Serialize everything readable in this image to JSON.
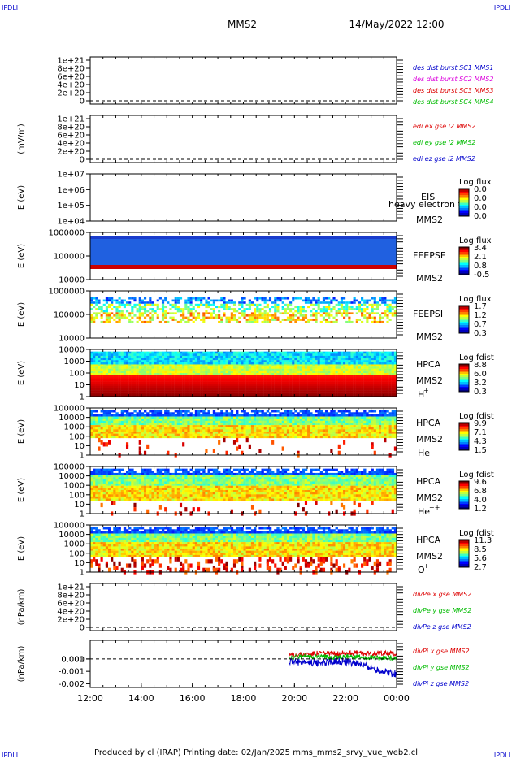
{
  "header": {
    "corner_label": "IPDLI",
    "spacecraft": "MMS2",
    "datetime": "14/May/2022 12:00"
  },
  "footer": {
    "text": "Produced by cl (IRAP)   Printing date: 02/Jan/2025   mms_mms2_srvy_vue_web2.cl"
  },
  "x_axis": {
    "range_hours": [
      12,
      24
    ],
    "ticks": [
      "12:00",
      "14:00",
      "16:00",
      "18:00",
      "20:00",
      "22:00",
      "00:00"
    ]
  },
  "colors": {
    "red": "#dd0000",
    "green": "#00bb00",
    "blue": "#0000cc",
    "magenta": "#dd00dd"
  },
  "chart_data": [
    {
      "type": "line",
      "ylabel": "",
      "yticks": [
        "1e+21",
        "8e+20",
        "6e+20",
        "4e+20",
        "2e+20",
        "0"
      ],
      "ylim": [
        0,
        1e+21
      ],
      "legend": [
        {
          "text": "des dist burst SC1 MMS1",
          "color": "#0000cc"
        },
        {
          "text": "des dist burst SC2 MMS2",
          "color": "#dd00dd"
        },
        {
          "text": "des dist burst SC3 MMS3",
          "color": "#dd0000"
        },
        {
          "text": "des dist burst SC4 MMS4",
          "color": "#00bb00"
        }
      ],
      "series": []
    },
    {
      "type": "line",
      "ylabel": "(mV/m)",
      "yticks": [
        "1e+21",
        "8e+20",
        "6e+20",
        "4e+20",
        "2e+20",
        "0"
      ],
      "ylim": [
        0,
        1e+21
      ],
      "legend": [
        {
          "text": "edi ex gse l2 MMS2",
          "color": "#dd0000"
        },
        {
          "text": "edi ey gse l2 MMS2",
          "color": "#00bb00"
        },
        {
          "text": "edi ez gse l2 MMS2",
          "color": "#0000cc"
        }
      ],
      "series": []
    },
    {
      "type": "heatmap",
      "ylabel": "E (eV)",
      "yticks": [
        "1e+07",
        "1e+06",
        "1e+05",
        "1e+04"
      ],
      "yscale": "log",
      "instrument": "EIS",
      "overlay_text": "heavy electron to",
      "spacecraft": "MMS2",
      "colorbar_title": "Log flux",
      "colorbar_ticks": [
        "0.0",
        "0.0",
        "0.0",
        "0.0"
      ]
    },
    {
      "type": "heatmap",
      "ylabel": "E (eV)",
      "yticks": [
        "1000000",
        "100000",
        "10000"
      ],
      "yscale": "log",
      "instrument": "FEEPSE",
      "spacecraft": "MMS2",
      "colorbar_title": "Log flux",
      "colorbar_ticks": [
        "3.4",
        "2.1",
        "0.8",
        "-0.5"
      ]
    },
    {
      "type": "heatmap",
      "ylabel": "E (eV)",
      "yticks": [
        "1000000",
        "100000",
        "10000"
      ],
      "yscale": "log",
      "instrument": "FEEPSI",
      "spacecraft": "MMS2",
      "colorbar_title": "Log flux",
      "colorbar_ticks": [
        "1.7",
        "1.2",
        "0.7",
        "0.3"
      ]
    },
    {
      "type": "heatmap",
      "ylabel": "E (eV)",
      "yticks": [
        "10000",
        "1000",
        "100",
        "10",
        "1"
      ],
      "yscale": "log",
      "instrument": "HPCA",
      "spacecraft": "MMS2",
      "species": "H",
      "charge": "+",
      "colorbar_title": "Log fdist",
      "colorbar_ticks": [
        "8.8",
        "6.0",
        "3.2",
        "0.3"
      ]
    },
    {
      "type": "heatmap",
      "ylabel": "E (eV)",
      "yticks": [
        "100000",
        "10000",
        "1000",
        "100",
        "10",
        "1"
      ],
      "yscale": "log",
      "instrument": "HPCA",
      "spacecraft": "MMS2",
      "species": "He",
      "charge": "+",
      "colorbar_title": "Log fdist",
      "colorbar_ticks": [
        "9.9",
        "7.1",
        "4.3",
        "1.5"
      ]
    },
    {
      "type": "heatmap",
      "ylabel": "E (eV)",
      "yticks": [
        "100000",
        "10000",
        "1000",
        "100",
        "10",
        "1"
      ],
      "yscale": "log",
      "instrument": "HPCA",
      "spacecraft": "MMS2",
      "species": "He",
      "charge": "++",
      "colorbar_title": "Log fdist",
      "colorbar_ticks": [
        "9.6",
        "6.8",
        "4.0",
        "1.2"
      ]
    },
    {
      "type": "heatmap",
      "ylabel": "E (eV)",
      "yticks": [
        "100000",
        "10000",
        "1000",
        "100",
        "10",
        "1"
      ],
      "yscale": "log",
      "instrument": "HPCA",
      "spacecraft": "MMS2",
      "species": "O",
      "charge": "+",
      "colorbar_title": "Log fdist",
      "colorbar_ticks": [
        "11.3",
        "8.5",
        "5.6",
        "2.7"
      ]
    },
    {
      "type": "line",
      "ylabel": "(nPa/km)",
      "yticks": [
        "1e+21",
        "8e+20",
        "6e+20",
        "4e+20",
        "2e+20",
        "0"
      ],
      "ylim": [
        0,
        1e+21
      ],
      "legend": [
        {
          "text": "divPe x gse MMS2",
          "color": "#dd0000"
        },
        {
          "text": "divPe y gse MMS2",
          "color": "#00bb00"
        },
        {
          "text": "divPe z gse MMS2",
          "color": "#0000cc"
        }
      ],
      "series": []
    },
    {
      "type": "line",
      "ylabel": "(nPa/km)",
      "yticks": [
        "0.001",
        "0.000",
        "-0.001",
        "-0.002"
      ],
      "ylim": [
        -0.0023,
        0.0015
      ],
      "data_start_hour": 19.8,
      "legend": [
        {
          "text": "divPi x gse MMS2",
          "color": "#dd0000"
        },
        {
          "text": "divPi y gse MMS2",
          "color": "#00bb00"
        },
        {
          "text": "divPi z gse MMS2",
          "color": "#0000cc"
        }
      ],
      "series": [
        {
          "name": "divPi x gse MMS2",
          "color": "#dd0000",
          "x": [
            19.8,
            20.5,
            21.0,
            21.5,
            22.0,
            22.5,
            23.0,
            23.5,
            24.0
          ],
          "y": [
            0.0003,
            0.0004,
            0.0005,
            0.0004,
            0.0005,
            0.0005,
            0.0004,
            0.0005,
            0.0004
          ]
        },
        {
          "name": "divPi y gse MMS2",
          "color": "#00bb00",
          "x": [
            19.8,
            20.5,
            21.0,
            21.5,
            22.0,
            22.5,
            23.0,
            23.5,
            24.0
          ],
          "y": [
            0.0001,
            0.0002,
            0.0002,
            0.0001,
            0.0002,
            0.0002,
            0.0001,
            0.0001,
            0.0001
          ]
        },
        {
          "name": "divPi z gse MMS2",
          "color": "#0000cc",
          "x": [
            19.8,
            20.5,
            21.0,
            21.5,
            22.0,
            22.5,
            23.0,
            23.5,
            24.0
          ],
          "y": [
            -0.0002,
            -0.0003,
            -0.0003,
            -0.0002,
            -0.0002,
            -0.0004,
            -0.0007,
            -0.001,
            -0.0012
          ]
        }
      ]
    }
  ]
}
